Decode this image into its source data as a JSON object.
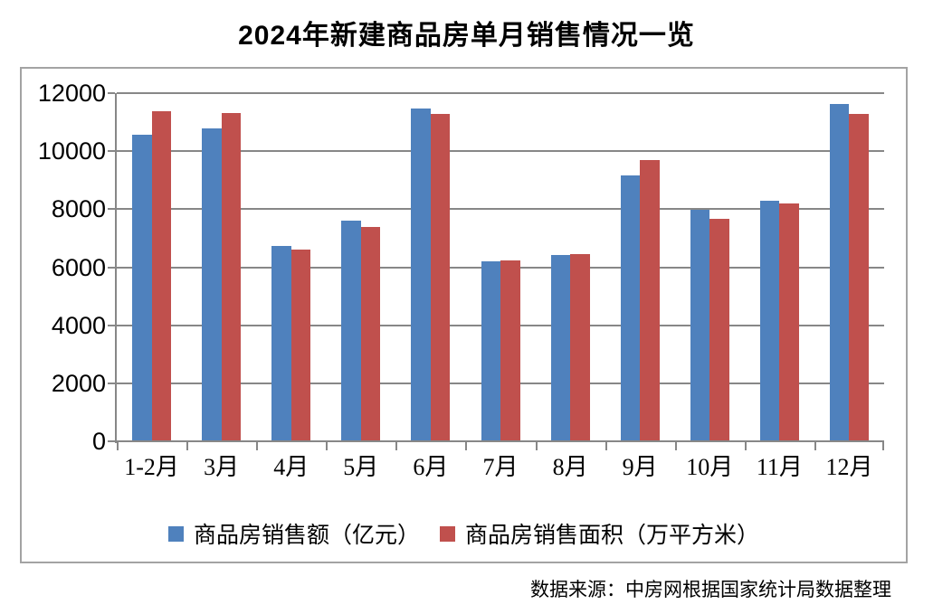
{
  "title": "2024年新建商品房单月销售情况一览",
  "source": "数据来源：中房网根据国家统计局数据整理",
  "colors": {
    "series_amount": "#4F81BD",
    "series_area": "#C0504D",
    "gridline": "#878787",
    "panel_border": "#A3A3A3",
    "text": "#000000"
  },
  "chart_data": {
    "type": "bar",
    "title": "2024年新建商品房单月销售情况一览",
    "categories": [
      "1-2月",
      "3月",
      "4月",
      "5月",
      "6月",
      "7月",
      "8月",
      "9月",
      "10月",
      "11月",
      "12月"
    ],
    "series": [
      {
        "name": "商品房销售额（亿元）",
        "color": "#4F81BD",
        "values": [
          10566,
          10789,
          6712,
          7598,
          11468,
          6197,
          6393,
          9157,
          7975,
          8270,
          11625
        ]
      },
      {
        "name": "商品房销售面积（万平方米）",
        "color": "#C0504D",
        "values": [
          11369,
          11299,
          6584,
          7390,
          11274,
          6233,
          6453,
          9682,
          7646,
          8188,
          11267
        ]
      }
    ],
    "xlabel": "",
    "ylabel": "",
    "ylim": [
      0,
      12000
    ],
    "yticks": [
      0,
      2000,
      4000,
      6000,
      8000,
      10000,
      12000
    ],
    "grid": true,
    "legend_position": "bottom",
    "source_note": "数据来源：中房网根据国家统计局数据整理"
  }
}
